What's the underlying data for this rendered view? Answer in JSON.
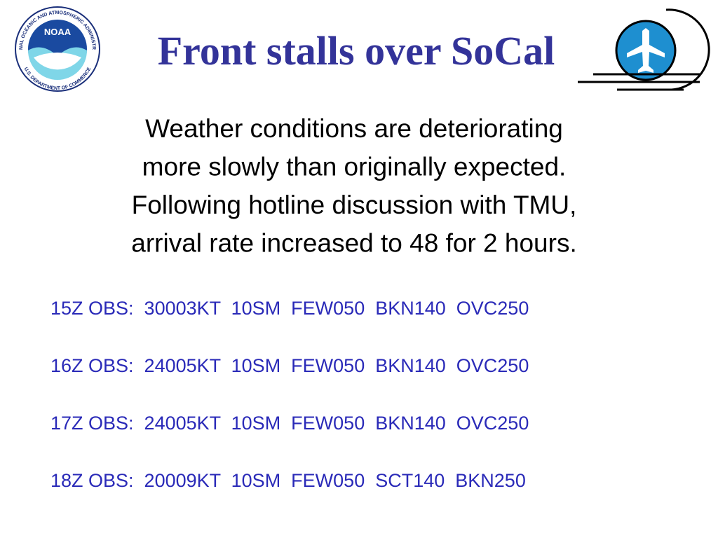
{
  "logo": {
    "name": "NOAA",
    "ring_top": "NATIONAL OCEANIC AND ATMOSPHERIC ADMINISTRATION",
    "ring_bottom": "U.S. DEPARTMENT OF COMMERCE"
  },
  "header": {
    "title": "Front stalls over SoCal"
  },
  "body": {
    "lines": [
      "Weather conditions are deteriorating",
      "more slowly than originally expected.",
      "Following hotline discussion with TMU,",
      "arrival rate increased to 48 for 2 hours."
    ]
  },
  "observations": [
    "15Z OBS:  30003KT  10SM  FEW050  BKN140  OVC250",
    "16Z OBS:  24005KT  10SM  FEW050  BKN140  OVC250",
    "17Z OBS:  24005KT  10SM  FEW050  BKN140  OVC250",
    "18Z OBS:  20009KT  10SM  FEW050  SCT140  BKN250"
  ]
}
